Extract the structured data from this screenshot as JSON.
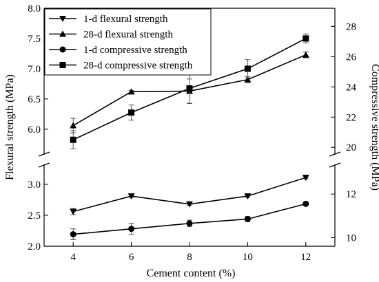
{
  "chart_data": {
    "type": "line",
    "xlabel": "Cement content (%)",
    "ylabel_left": "Flexural strength (MPa)",
    "ylabel_right": "Compressive strength (MPa)",
    "x": [
      4,
      6,
      8,
      10,
      12
    ],
    "x_ticks": [
      "4",
      "6",
      "8",
      "10",
      "12"
    ],
    "xlim": [
      3,
      13
    ],
    "left_axis": {
      "ticks": [
        "2.0",
        "2.5",
        "3.0",
        "6.0",
        "6.5",
        "7.0",
        "7.5",
        "8.0"
      ],
      "broken": true,
      "lower_range": [
        2.0,
        3.3
      ],
      "upper_range": [
        5.6,
        8.0
      ]
    },
    "right_axis": {
      "ticks": [
        "10",
        "12",
        "20",
        "22",
        "24",
        "26",
        "28"
      ],
      "broken": true,
      "lower_range": [
        9.6,
        13.3
      ],
      "upper_range": [
        19.6,
        29.2
      ]
    },
    "legend": {
      "placement": "top-left",
      "box": true
    },
    "series": [
      {
        "name": "1-d flexural strength",
        "marker": "triangle-down",
        "axis": "left",
        "values": [
          2.56,
          2.81,
          2.68,
          2.81,
          3.11
        ],
        "errors": [
          0.05,
          0.02,
          0.02,
          0.02,
          0.02
        ]
      },
      {
        "name": "28-d flexural strength",
        "marker": "triangle-up",
        "axis": "left",
        "values": [
          6.06,
          6.62,
          6.63,
          6.82,
          7.23
        ],
        "errors": [
          0.12,
          0.02,
          0.2,
          0.05,
          0.05
        ]
      },
      {
        "name": "1-d compressive strength",
        "marker": "circle",
        "axis": "right",
        "values": [
          10.15,
          10.4,
          10.65,
          10.85,
          11.55
        ],
        "errors": [
          0.25,
          0.25,
          0.15,
          0.12,
          0.08
        ]
      },
      {
        "name": "28-d compressive strength",
        "marker": "square",
        "axis": "right",
        "values": [
          20.5,
          22.3,
          23.9,
          25.2,
          27.2
        ],
        "errors": [
          0.6,
          0.5,
          1.0,
          0.6,
          0.3
        ]
      }
    ]
  }
}
